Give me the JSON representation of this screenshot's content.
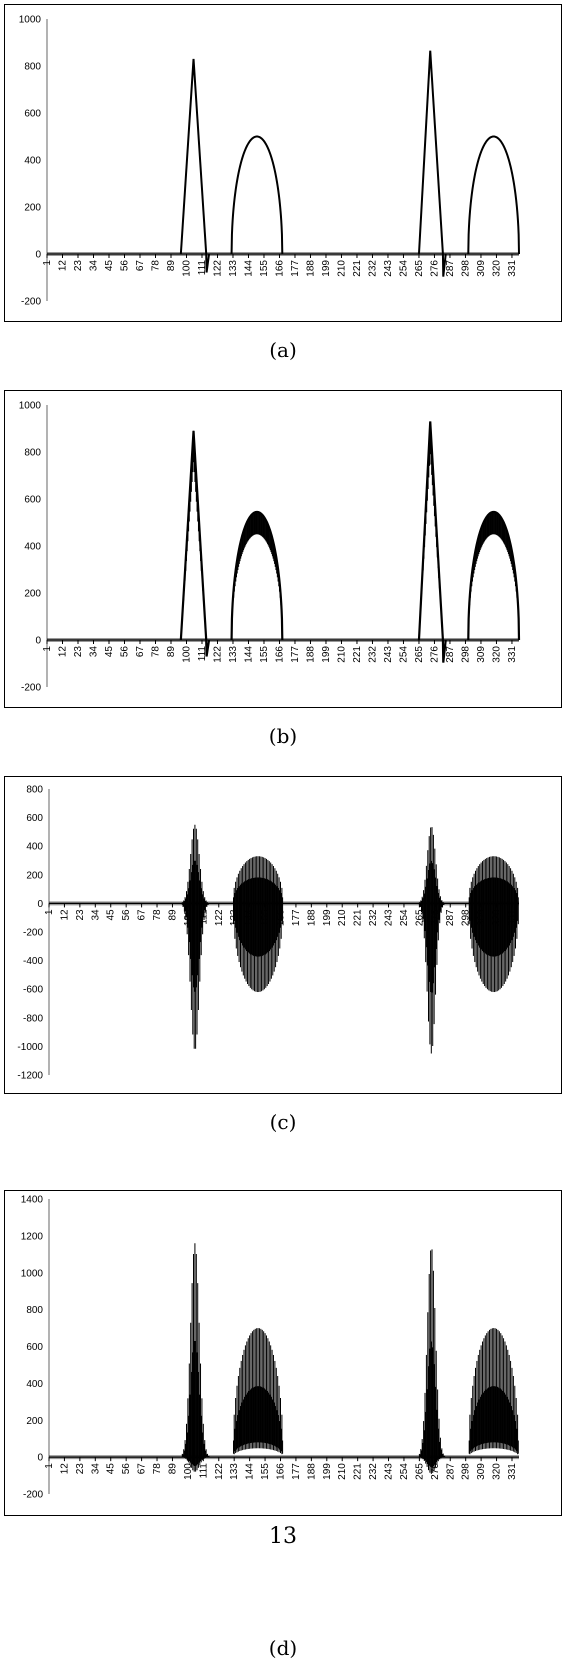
{
  "x_tick_labels": [
    "1",
    "12",
    "23",
    "34",
    "45",
    "56",
    "67",
    "78",
    "89",
    "100",
    "111",
    "122",
    "133",
    "144",
    "155",
    "166",
    "177",
    "188",
    "199",
    "210",
    "221",
    "232",
    "243",
    "254",
    "265",
    "276",
    "287",
    "298",
    "309",
    "320",
    "331"
  ],
  "axis_color": "#999999",
  "line_color": "#000000",
  "page_number": "13",
  "chart_data": [
    {
      "type": "line",
      "label": "(a)",
      "ylim": [
        -200,
        1000
      ],
      "yticks": [
        -200,
        0,
        200,
        400,
        600,
        800,
        1000
      ],
      "x_range": [
        1,
        336
      ],
      "shape": "smooth",
      "pulses": [
        {
          "kind": "tri",
          "x0": 96,
          "x1": 105,
          "x2": 114,
          "amp": 830,
          "dip": -90
        },
        {
          "kind": "arc",
          "x0": 132,
          "x1": 168,
          "amp": 500
        },
        {
          "kind": "tri",
          "x0": 265,
          "x1": 273,
          "x2": 282,
          "amp": 865,
          "dip": -110
        },
        {
          "kind": "arc",
          "x0": 300,
          "x1": 336,
          "amp": 500
        }
      ]
    },
    {
      "type": "line",
      "label": "(b)",
      "ylim": [
        -200,
        1000
      ],
      "yticks": [
        -200,
        0,
        200,
        400,
        600,
        800,
        1000
      ],
      "x_range": [
        1,
        336
      ],
      "shape": "thick",
      "pulses": [
        {
          "kind": "tri",
          "x0": 96,
          "x1": 105,
          "x2": 114,
          "amp": 890,
          "dip": -80
        },
        {
          "kind": "arc",
          "x0": 132,
          "x1": 168,
          "amp": 545,
          "inner": 450
        },
        {
          "kind": "tri",
          "x0": 265,
          "x1": 273,
          "x2": 282,
          "amp": 930,
          "dip": -110
        },
        {
          "kind": "arc",
          "x0": 300,
          "x1": 336,
          "amp": 545,
          "inner": 450
        }
      ]
    },
    {
      "type": "line",
      "label": "(c)",
      "ylim": [
        -1200,
        800
      ],
      "yticks": [
        -1200,
        -1000,
        -800,
        -600,
        -400,
        -200,
        0,
        200,
        400,
        600,
        800
      ],
      "x_range": [
        1,
        336
      ],
      "shape": "oscillating",
      "pulses": [
        {
          "kind": "osc",
          "x0": 96,
          "x1": 116,
          "hi": 550,
          "lo": -1030
        },
        {
          "kind": "osc",
          "x0": 132,
          "x1": 168,
          "hi": 330,
          "lo": -620
        },
        {
          "kind": "osc",
          "x0": 265,
          "x1": 284,
          "hi": 540,
          "lo": -1050
        },
        {
          "kind": "osc",
          "x0": 300,
          "x1": 336,
          "hi": 330,
          "lo": -620
        }
      ]
    },
    {
      "type": "line",
      "label": "(d)",
      "ylim": [
        -200,
        1400
      ],
      "yticks": [
        -200,
        0,
        200,
        400,
        600,
        800,
        1000,
        1200,
        1400
      ],
      "x_range": [
        1,
        336
      ],
      "shape": "oscillating",
      "pulses": [
        {
          "kind": "osc",
          "x0": 96,
          "x1": 116,
          "hi": 1160,
          "lo": -80
        },
        {
          "kind": "osc",
          "x0": 132,
          "x1": 168,
          "hi": 700,
          "lo": 80
        },
        {
          "kind": "osc",
          "x0": 265,
          "x1": 284,
          "hi": 1140,
          "lo": -90
        },
        {
          "kind": "osc",
          "x0": 300,
          "x1": 336,
          "hi": 700,
          "lo": 80
        }
      ]
    }
  ]
}
